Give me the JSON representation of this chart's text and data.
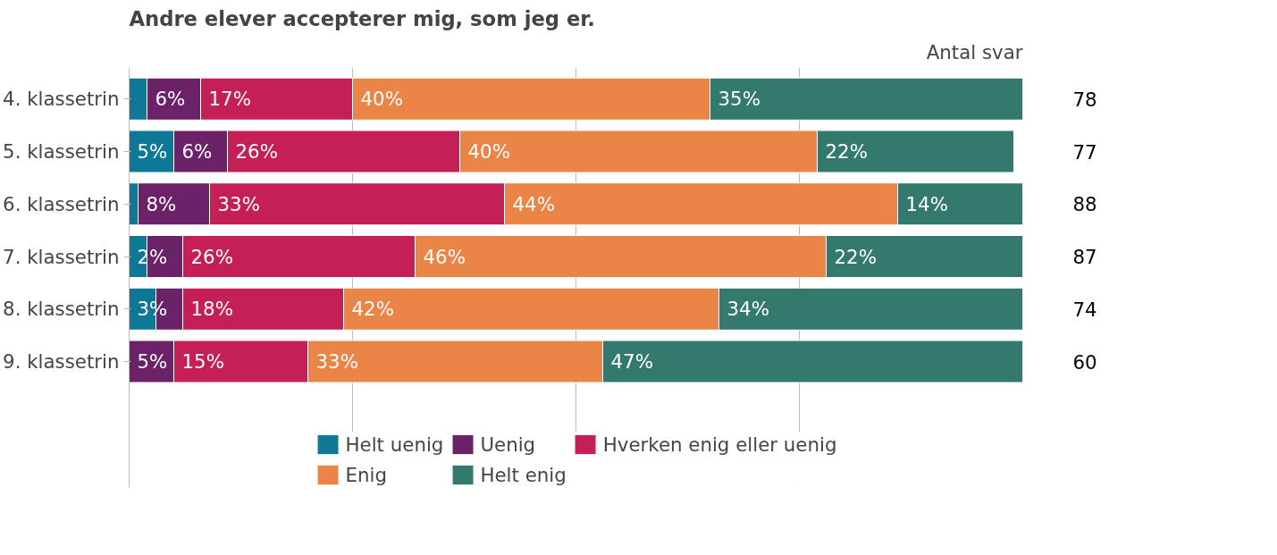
{
  "chart_data": {
    "type": "bar",
    "orientation": "horizontal",
    "stacked": true,
    "title": "Andre elever accepterer mig, som jeg er.",
    "categories": [
      "4. klassetrin",
      "5. klassetrin",
      "6. klassetrin",
      "7. klassetrin",
      "8. klassetrin",
      "9. klassetrin"
    ],
    "series": [
      {
        "name": "Helt uenig",
        "color": "#0f7896",
        "values": [
          2,
          5,
          1,
          2,
          3,
          0
        ],
        "value_labels": [
          null,
          "5%",
          null,
          "2%",
          "3%",
          null
        ]
      },
      {
        "name": "Uenig",
        "color": "#6b2268",
        "values": [
          6,
          6,
          8,
          4,
          3,
          5
        ],
        "value_labels": [
          "6%",
          "6%",
          "8%",
          null,
          null,
          "5%"
        ]
      },
      {
        "name": "Hverken enig eller uenig",
        "color": "#c41f56",
        "values": [
          17,
          26,
          33,
          26,
          18,
          15
        ],
        "value_labels": [
          "17%",
          "26%",
          "33%",
          "26%",
          "18%",
          "15%"
        ]
      },
      {
        "name": "Enig",
        "color": "#ea8447",
        "values": [
          40,
          40,
          44,
          46,
          42,
          33
        ],
        "value_labels": [
          "40%",
          "40%",
          "44%",
          "46%",
          "42%",
          "33%"
        ]
      },
      {
        "name": "Helt enig",
        "color": "#33796d",
        "values": [
          35,
          22,
          14,
          22,
          34,
          47
        ],
        "value_labels": [
          "35%",
          "22%",
          "14%",
          "22%",
          "34%",
          "47%"
        ]
      }
    ],
    "xlim": [
      0,
      100
    ],
    "xticks": [
      {
        "value": 25,
        "label": null
      },
      {
        "value": 50,
        "label": null
      },
      {
        "value": 75,
        "label": null
      }
    ],
    "tick_labels": "y",
    "grid": "x",
    "legend": "bottom",
    "annotations": [
      "Antal svar",
      "78",
      "77",
      "88",
      "87",
      "74",
      "60"
    ]
  }
}
